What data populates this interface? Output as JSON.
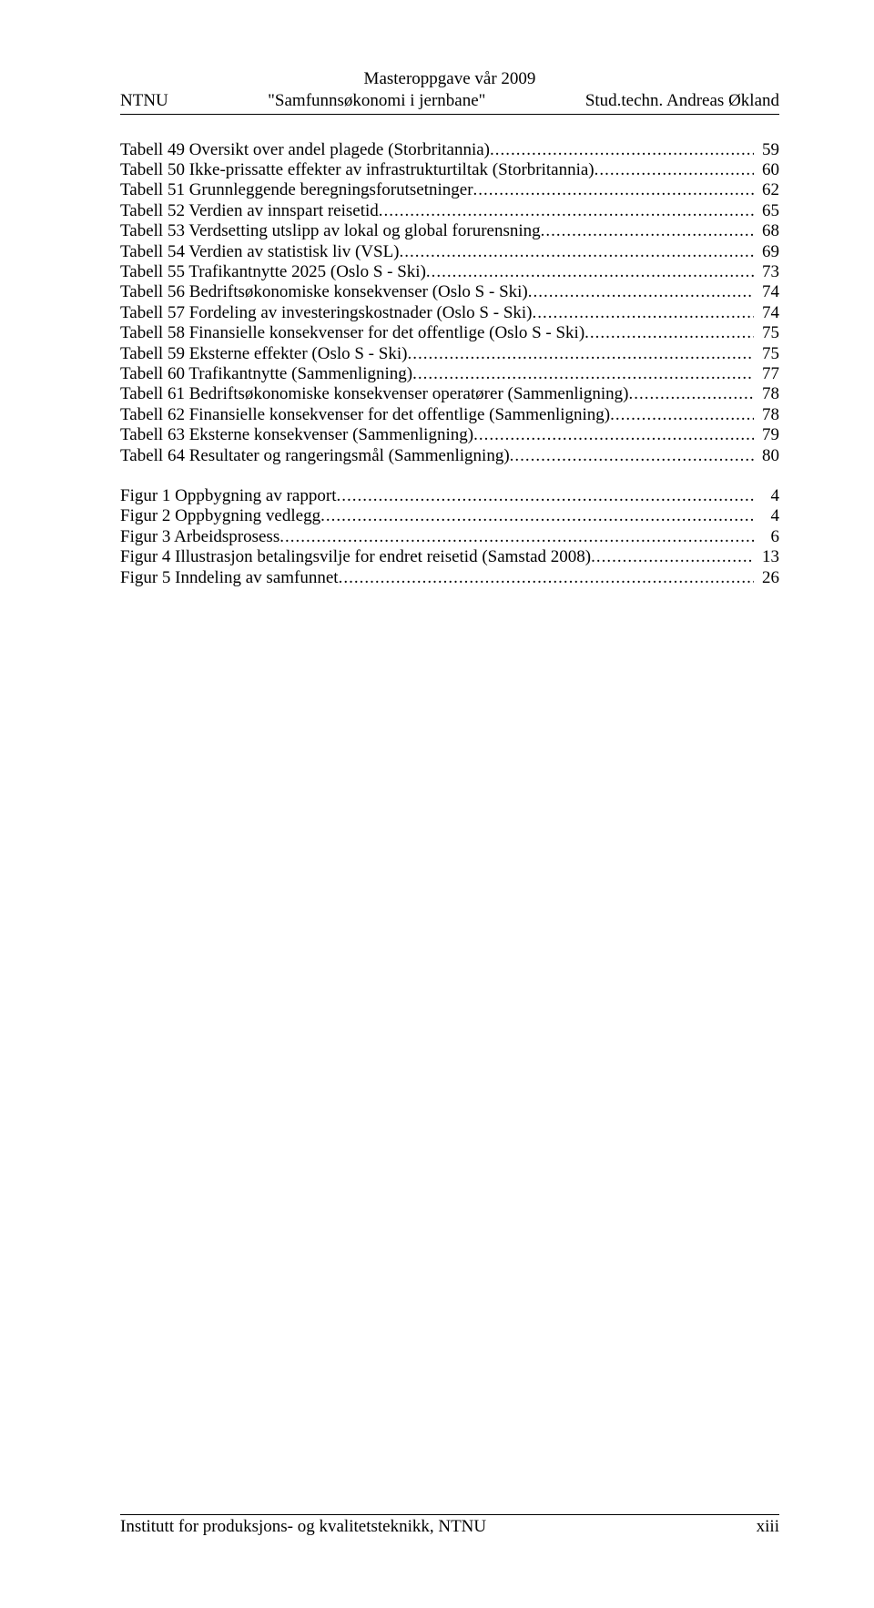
{
  "header": {
    "line1_center": "Masteroppgave vår 2009",
    "line2_left": "NTNU",
    "line2_center": "\"Samfunnsøkonomi i jernbane\"",
    "line2_right": "Stud.techn. Andreas Økland"
  },
  "toc_tables": [
    {
      "label": "Tabell 49 Oversikt over andel plagede (Storbritannia)",
      "page": "59"
    },
    {
      "label": "Tabell 50 Ikke-prissatte effekter av infrastrukturtiltak (Storbritannia)",
      "page": "60"
    },
    {
      "label": "Tabell 51 Grunnleggende beregningsforutsetninger",
      "page": "62"
    },
    {
      "label": "Tabell 52 Verdien av innspart reisetid",
      "page": "65"
    },
    {
      "label": "Tabell 53 Verdsetting utslipp av lokal og global forurensning",
      "page": "68"
    },
    {
      "label": "Tabell 54 Verdien av statistisk liv (VSL)",
      "page": "69"
    },
    {
      "label": "Tabell 55 Trafikantnytte 2025 (Oslo S - Ski)",
      "page": "73"
    },
    {
      "label": "Tabell 56 Bedriftsøkonomiske konsekvenser (Oslo S - Ski)",
      "page": "74"
    },
    {
      "label": "Tabell 57 Fordeling av investeringskostnader (Oslo S - Ski)",
      "page": "74"
    },
    {
      "label": "Tabell 58 Finansielle konsekvenser for det offentlige (Oslo S - Ski)",
      "page": "75"
    },
    {
      "label": "Tabell 59 Eksterne effekter (Oslo S - Ski)",
      "page": "75"
    },
    {
      "label": "Tabell 60 Trafikantnytte (Sammenligning)",
      "page": "77"
    },
    {
      "label": "Tabell 61 Bedriftsøkonomiske konsekvenser operatører (Sammenligning)",
      "page": "78"
    },
    {
      "label": "Tabell 62 Finansielle konsekvenser for det offentlige (Sammenligning)",
      "page": "78"
    },
    {
      "label": "Tabell 63 Eksterne konsekvenser (Sammenligning)",
      "page": "79"
    },
    {
      "label": "Tabell 64 Resultater og rangeringsmål (Sammenligning)",
      "page": "80"
    }
  ],
  "toc_figures": [
    {
      "label": "Figur 1 Oppbygning av rapport",
      "page": "4"
    },
    {
      "label": "Figur 2 Oppbygning vedlegg",
      "page": "4"
    },
    {
      "label": "Figur 3 Arbeidsprosess",
      "page": "6"
    },
    {
      "label": "Figur 4 Illustrasjon betalingsvilje for endret reisetid (Samstad 2008)",
      "page": "13"
    },
    {
      "label": "Figur 5 Inndeling av samfunnet",
      "page": "26"
    }
  ],
  "footer": {
    "left": "Institutt for produksjons- og kvalitetsteknikk, NTNU",
    "right": "xiii"
  }
}
